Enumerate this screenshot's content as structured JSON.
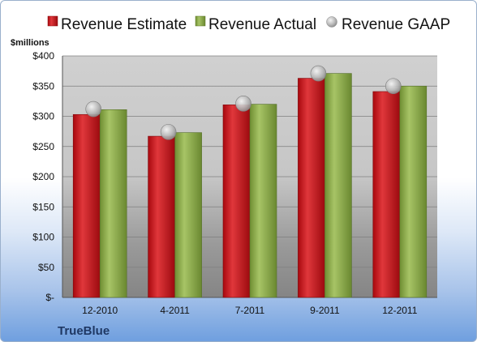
{
  "company": "TrueBlue",
  "colors": {
    "estimate": "#c0161b",
    "actual": "#8fae4a",
    "gaap": "#b8b8b8",
    "company_text": "#1f3864"
  },
  "chart_data": {
    "type": "bar",
    "unit_label": "$millions",
    "categories": [
      "12-2010",
      "4-2011",
      "7-2011",
      "9-2011",
      "12-2011"
    ],
    "series": [
      {
        "name": "Revenue Estimate",
        "kind": "bar",
        "values": [
          303,
          267,
          319,
          363,
          341
        ]
      },
      {
        "name": "Revenue Actual",
        "kind": "bar",
        "values": [
          311,
          273,
          320,
          371,
          350
        ]
      },
      {
        "name": "Revenue GAAP",
        "kind": "marker",
        "values": [
          312,
          274,
          321,
          371,
          350
        ]
      }
    ],
    "ylim": [
      0,
      400
    ],
    "y_ticks": [
      0,
      50,
      100,
      150,
      200,
      250,
      300,
      350,
      400
    ],
    "y_tick_labels": [
      "$-",
      "$50",
      "$100",
      "$150",
      "$200",
      "$250",
      "$300",
      "$350",
      "$400"
    ],
    "grid": true,
    "legend_position": "top"
  }
}
